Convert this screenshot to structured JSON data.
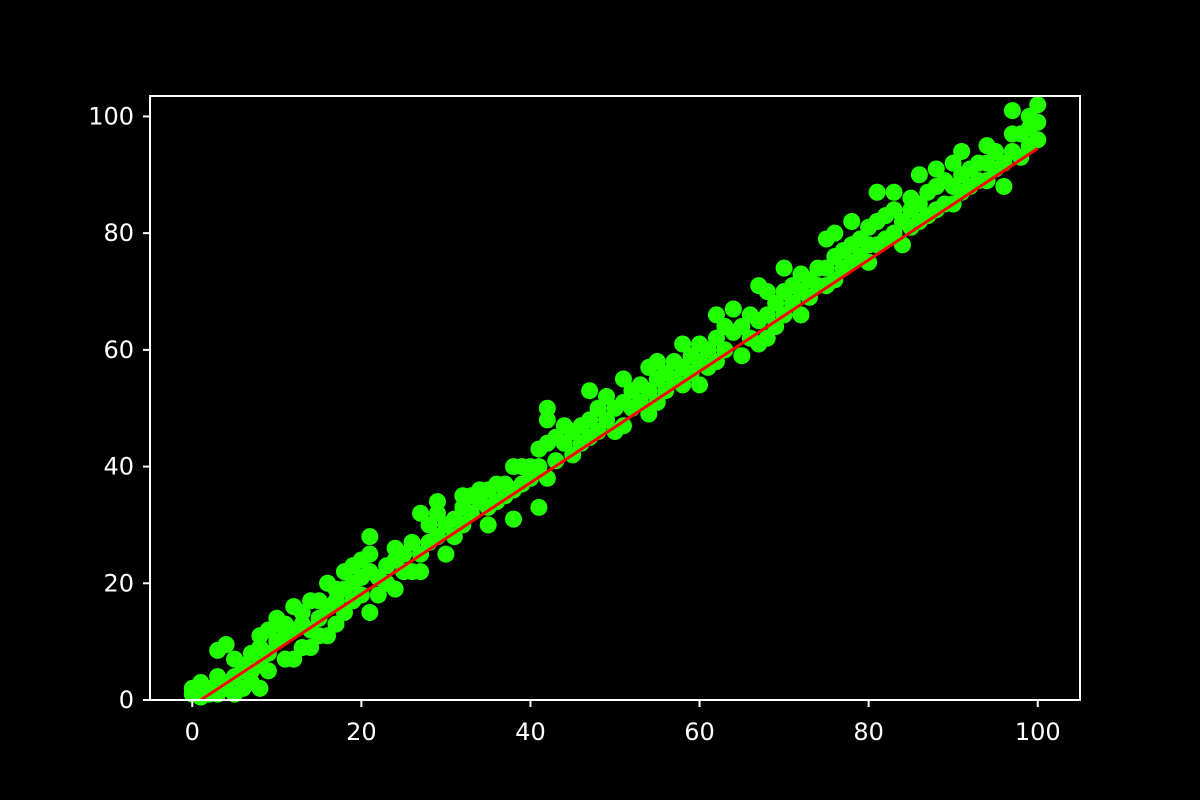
{
  "chart_data": {
    "type": "scatter",
    "title": "",
    "xlabel": "",
    "ylabel": "",
    "xlim": [
      -5,
      105
    ],
    "ylim": [
      0,
      103.5
    ],
    "xticks": [
      0,
      20,
      40,
      60,
      80,
      100
    ],
    "yticks": [
      0,
      20,
      40,
      60,
      80,
      100
    ],
    "grid": false,
    "legend": "none",
    "colors": {
      "background": "#000000",
      "axes": "#ffffff",
      "text": "#ffffff",
      "points": "#22ff00",
      "fit_line": "#ff0000"
    },
    "fit_line": {
      "x": [
        1,
        100
      ],
      "y": [
        0,
        94.5
      ]
    },
    "series": [
      {
        "values": [
          [
            0,
            1
          ],
          [
            0,
            2
          ],
          [
            1,
            0.5
          ],
          [
            1,
            3
          ],
          [
            1,
            1
          ],
          [
            2,
            1
          ],
          [
            2,
            2
          ],
          [
            3,
            1
          ],
          [
            3,
            4
          ],
          [
            3,
            8.5
          ],
          [
            4,
            2
          ],
          [
            4,
            3
          ],
          [
            4,
            9.5
          ],
          [
            5,
            1
          ],
          [
            5,
            4
          ],
          [
            5,
            7
          ],
          [
            6,
            2
          ],
          [
            6,
            5
          ],
          [
            6,
            6
          ],
          [
            7,
            3
          ],
          [
            7,
            8
          ],
          [
            7,
            5
          ],
          [
            8,
            2
          ],
          [
            8,
            6
          ],
          [
            8,
            9
          ],
          [
            8,
            11
          ],
          [
            9,
            5
          ],
          [
            9,
            8
          ],
          [
            9,
            12
          ],
          [
            10,
            10
          ],
          [
            10,
            13
          ],
          [
            10,
            14
          ],
          [
            11,
            7
          ],
          [
            11,
            11
          ],
          [
            11,
            13
          ],
          [
            12,
            7
          ],
          [
            12,
            12
          ],
          [
            12,
            16
          ],
          [
            13,
            9
          ],
          [
            13,
            13
          ],
          [
            13,
            15
          ],
          [
            14,
            9
          ],
          [
            14,
            12
          ],
          [
            14,
            17
          ],
          [
            15,
            11
          ],
          [
            15,
            14
          ],
          [
            15,
            17
          ],
          [
            16,
            11
          ],
          [
            16,
            16
          ],
          [
            16,
            20
          ],
          [
            17,
            13
          ],
          [
            17,
            17
          ],
          [
            17,
            19
          ],
          [
            18,
            15
          ],
          [
            18,
            19
          ],
          [
            18,
            22
          ],
          [
            19,
            17
          ],
          [
            19,
            20
          ],
          [
            19,
            23
          ],
          [
            20,
            18
          ],
          [
            20,
            21
          ],
          [
            20,
            24
          ],
          [
            21,
            15
          ],
          [
            21,
            22
          ],
          [
            21,
            25
          ],
          [
            21,
            28
          ],
          [
            22,
            18
          ],
          [
            22,
            21
          ],
          [
            23,
            20
          ],
          [
            23,
            23
          ],
          [
            24,
            19
          ],
          [
            24,
            24
          ],
          [
            24,
            26
          ],
          [
            25,
            22
          ],
          [
            25,
            25
          ],
          [
            26,
            22
          ],
          [
            26,
            27
          ],
          [
            27,
            22
          ],
          [
            27,
            25
          ],
          [
            27,
            32
          ],
          [
            28,
            27
          ],
          [
            28,
            30
          ],
          [
            29,
            28
          ],
          [
            29,
            32
          ],
          [
            29,
            34
          ],
          [
            30,
            25
          ],
          [
            30,
            30
          ],
          [
            31,
            28
          ],
          [
            31,
            31
          ],
          [
            32,
            30
          ],
          [
            32,
            33
          ],
          [
            32,
            35
          ],
          [
            33,
            32
          ],
          [
            33,
            35
          ],
          [
            34,
            34
          ],
          [
            34,
            36
          ],
          [
            35,
            30
          ],
          [
            35,
            33
          ],
          [
            35,
            36
          ],
          [
            36,
            34
          ],
          [
            36,
            37
          ],
          [
            37,
            35
          ],
          [
            37,
            37
          ],
          [
            38,
            31
          ],
          [
            38,
            36
          ],
          [
            38,
            40
          ],
          [
            39,
            37
          ],
          [
            39,
            40
          ],
          [
            40,
            38
          ],
          [
            40,
            40
          ],
          [
            41,
            33
          ],
          [
            41,
            40
          ],
          [
            41,
            43
          ],
          [
            42,
            38
          ],
          [
            42,
            44
          ],
          [
            42,
            48
          ],
          [
            42,
            50
          ],
          [
            43,
            41
          ],
          [
            43,
            45
          ],
          [
            44,
            44
          ],
          [
            44,
            47
          ],
          [
            45,
            42
          ],
          [
            45,
            46
          ],
          [
            46,
            44
          ],
          [
            46,
            47
          ],
          [
            47,
            45
          ],
          [
            47,
            48
          ],
          [
            47,
            53
          ],
          [
            48,
            46
          ],
          [
            48,
            50
          ],
          [
            49,
            48
          ],
          [
            49,
            52
          ],
          [
            50,
            46
          ],
          [
            50,
            50
          ],
          [
            51,
            47
          ],
          [
            51,
            51
          ],
          [
            51,
            55
          ],
          [
            52,
            50
          ],
          [
            52,
            53
          ],
          [
            53,
            51
          ],
          [
            53,
            54
          ],
          [
            54,
            49
          ],
          [
            54,
            53
          ],
          [
            54,
            57
          ],
          [
            55,
            51
          ],
          [
            55,
            55
          ],
          [
            55,
            58
          ],
          [
            56,
            53
          ],
          [
            56,
            56
          ],
          [
            57,
            55
          ],
          [
            57,
            58
          ],
          [
            58,
            54
          ],
          [
            58,
            57
          ],
          [
            58,
            61
          ],
          [
            59,
            56
          ],
          [
            59,
            59
          ],
          [
            60,
            54
          ],
          [
            60,
            58
          ],
          [
            60,
            61
          ],
          [
            61,
            57
          ],
          [
            61,
            60
          ],
          [
            62,
            58
          ],
          [
            62,
            62
          ],
          [
            62,
            66
          ],
          [
            63,
            60
          ],
          [
            63,
            64
          ],
          [
            64,
            63
          ],
          [
            64,
            67
          ],
          [
            65,
            59
          ],
          [
            65,
            64
          ],
          [
            66,
            62
          ],
          [
            66,
            66
          ],
          [
            67,
            61
          ],
          [
            67,
            65
          ],
          [
            67,
            71
          ],
          [
            68,
            62
          ],
          [
            68,
            66
          ],
          [
            68,
            70
          ],
          [
            69,
            64
          ],
          [
            69,
            68
          ],
          [
            70,
            66
          ],
          [
            70,
            70
          ],
          [
            70,
            74
          ],
          [
            71,
            68
          ],
          [
            71,
            71
          ],
          [
            72,
            66
          ],
          [
            72,
            70
          ],
          [
            72,
            73
          ],
          [
            73,
            69
          ],
          [
            73,
            72
          ],
          [
            74,
            71
          ],
          [
            74,
            74
          ],
          [
            75,
            71
          ],
          [
            75,
            74
          ],
          [
            75,
            79
          ],
          [
            76,
            72
          ],
          [
            76,
            76
          ],
          [
            76,
            80
          ],
          [
            77,
            74
          ],
          [
            77,
            77
          ],
          [
            78,
            75
          ],
          [
            78,
            78
          ],
          [
            78,
            82
          ],
          [
            79,
            76
          ],
          [
            79,
            79
          ],
          [
            80,
            75
          ],
          [
            80,
            78
          ],
          [
            80,
            81
          ],
          [
            81,
            78
          ],
          [
            81,
            82
          ],
          [
            81,
            87
          ],
          [
            82,
            79
          ],
          [
            82,
            83
          ],
          [
            83,
            80
          ],
          [
            83,
            84
          ],
          [
            83,
            87
          ],
          [
            84,
            78
          ],
          [
            84,
            82
          ],
          [
            85,
            81
          ],
          [
            85,
            84
          ],
          [
            85,
            86
          ],
          [
            86,
            82
          ],
          [
            86,
            85
          ],
          [
            86,
            90
          ],
          [
            87,
            83
          ],
          [
            87,
            87
          ],
          [
            88,
            84
          ],
          [
            88,
            88
          ],
          [
            88,
            91
          ],
          [
            89,
            85
          ],
          [
            89,
            89
          ],
          [
            90,
            85
          ],
          [
            90,
            88
          ],
          [
            90,
            92
          ],
          [
            91,
            87
          ],
          [
            91,
            90
          ],
          [
            91,
            94
          ],
          [
            92,
            88
          ],
          [
            92,
            91
          ],
          [
            93,
            89
          ],
          [
            93,
            92
          ],
          [
            94,
            89
          ],
          [
            94,
            92
          ],
          [
            94,
            95
          ],
          [
            95,
            91
          ],
          [
            95,
            94
          ],
          [
            96,
            88
          ],
          [
            96,
            92
          ],
          [
            97,
            94
          ],
          [
            97,
            97
          ],
          [
            97,
            101
          ],
          [
            98,
            93
          ],
          [
            98,
            97
          ],
          [
            99,
            95
          ],
          [
            99,
            98
          ],
          [
            99,
            100
          ],
          [
            100,
            96
          ],
          [
            100,
            99
          ],
          [
            100,
            102
          ]
        ]
      }
    ]
  }
}
